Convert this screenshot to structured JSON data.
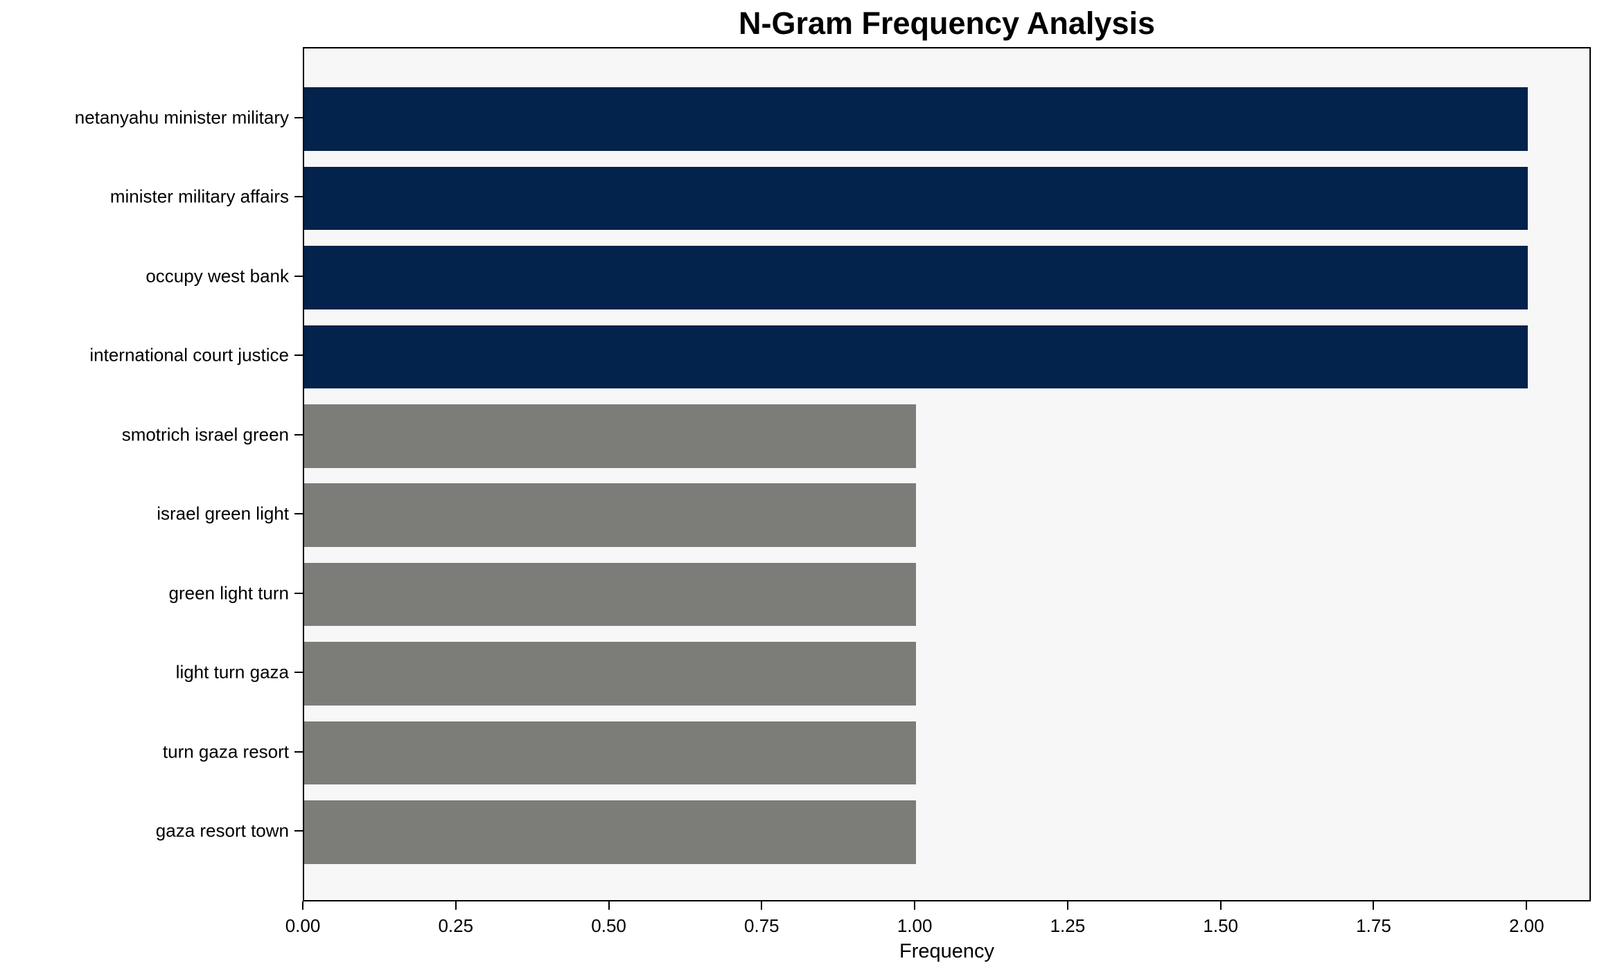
{
  "chart_data": {
    "type": "bar",
    "orientation": "horizontal",
    "title": "N-Gram Frequency Analysis",
    "xlabel": "Frequency",
    "ylabel": "",
    "categories": [
      "netanyahu minister military",
      "minister military affairs",
      "occupy west bank",
      "international court justice",
      "smotrich israel green",
      "israel green light",
      "green light turn",
      "light turn gaza",
      "turn gaza resort",
      "gaza resort town"
    ],
    "values": [
      2,
      2,
      2,
      2,
      1,
      1,
      1,
      1,
      1,
      1
    ],
    "bar_colors": [
      "#03224c",
      "#03224c",
      "#03224c",
      "#03224c",
      "#7c7c78",
      "#7c7c78",
      "#7c7c78",
      "#7c7c78",
      "#7c7c78",
      "#7c7c78"
    ],
    "xticks": [
      0.0,
      0.25,
      0.5,
      0.75,
      1.0,
      1.25,
      1.5,
      1.75,
      2.0
    ],
    "xtick_labels": [
      "0.00",
      "0.25",
      "0.50",
      "0.75",
      "1.00",
      "1.25",
      "1.50",
      "1.75",
      "2.00"
    ],
    "xlim": [
      0,
      2.105
    ],
    "grid": false,
    "legend_position": "none",
    "plot_background": "#f7f7f7",
    "figure_background": "#ffffff",
    "accent_colors": {
      "high_frequency": "#03224c",
      "low_frequency": "#7c7c78"
    }
  }
}
